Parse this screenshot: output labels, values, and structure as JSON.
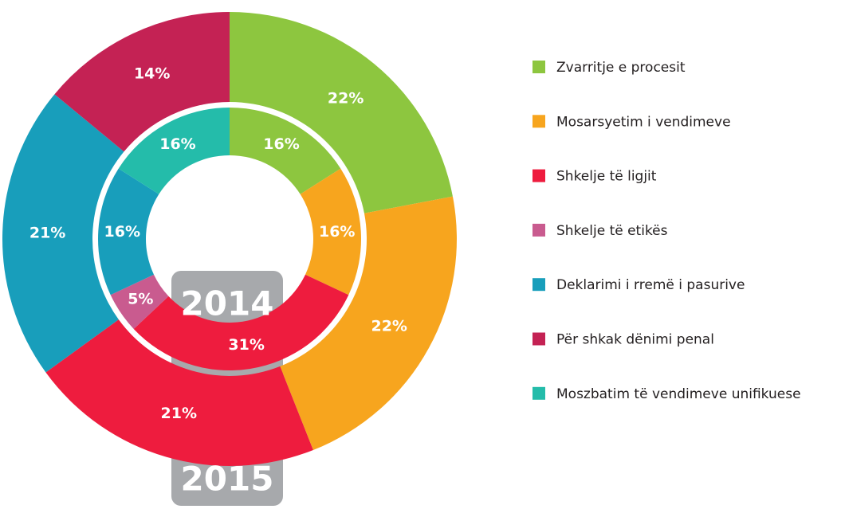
{
  "chart_data": {
    "type": "donut",
    "categories": [
      "Zvarritje e procesit",
      "Mosarsyetim i vendimeve",
      "Shkelje të ligjit",
      "Shkelje të etikës",
      "Deklarimi i rremë i pasurive",
      "Për shkak dënimi penal",
      "Moszbatim të vendimeve unifikuese"
    ],
    "colors": [
      "#8dc63f",
      "#f7a51e",
      "#ee1c3e",
      "#c95b8f",
      "#189ebb",
      "#c42254",
      "#24bcaa"
    ],
    "series": [
      {
        "name": "2014",
        "values": [
          16,
          16,
          31,
          5,
          16,
          null,
          16
        ],
        "value_labels": [
          "16%",
          "16%",
          "31%",
          "5%",
          "16%",
          null,
          "16%"
        ]
      },
      {
        "name": "2015",
        "values": [
          22,
          22,
          21,
          null,
          21,
          14,
          null
        ],
        "value_labels": [
          "22%",
          "22%",
          "21%",
          null,
          "21%",
          "14%",
          null
        ]
      }
    ]
  }
}
